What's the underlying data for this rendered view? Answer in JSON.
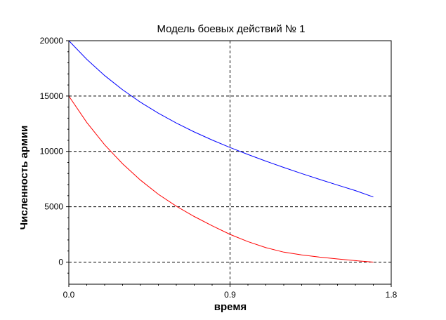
{
  "chart_data": {
    "type": "line",
    "title": "Модель боевых действий № 1",
    "xlabel": "время",
    "ylabel": "Численность армии",
    "xlim": [
      0,
      1.8
    ],
    "ylim": [
      -2000,
      20000
    ],
    "xticks": [
      0,
      0.9,
      1.8
    ],
    "xtick_labels": [
      "0.0",
      "0.9",
      "1.8"
    ],
    "yticks": [
      0,
      5000,
      10000,
      15000,
      20000
    ],
    "ytick_labels": [
      "0",
      "5000",
      "10000",
      "15000",
      "20000"
    ],
    "grid": true,
    "series": [
      {
        "color": "#0000ff",
        "x": [
          0,
          0.1,
          0.2,
          0.3,
          0.4,
          0.5,
          0.6,
          0.7,
          0.8,
          0.9,
          1.0,
          1.1,
          1.2,
          1.3,
          1.4,
          1.5,
          1.6,
          1.7
        ],
        "y": [
          20000,
          18320,
          16850,
          15570,
          14440,
          13450,
          12560,
          11760,
          11030,
          10350,
          9720,
          9120,
          8550,
          8000,
          7470,
          6960,
          6460,
          5880
        ]
      },
      {
        "color": "#ff0000",
        "x": [
          0,
          0.1,
          0.2,
          0.3,
          0.4,
          0.5,
          0.6,
          0.7,
          0.8,
          0.9,
          1.0,
          1.1,
          1.2,
          1.3,
          1.4,
          1.5,
          1.6,
          1.7
        ],
        "y": [
          15000,
          12620,
          10600,
          8880,
          7400,
          6120,
          5050,
          4120,
          3280,
          2500,
          1850,
          1300,
          900,
          650,
          450,
          280,
          130,
          0
        ]
      }
    ]
  }
}
